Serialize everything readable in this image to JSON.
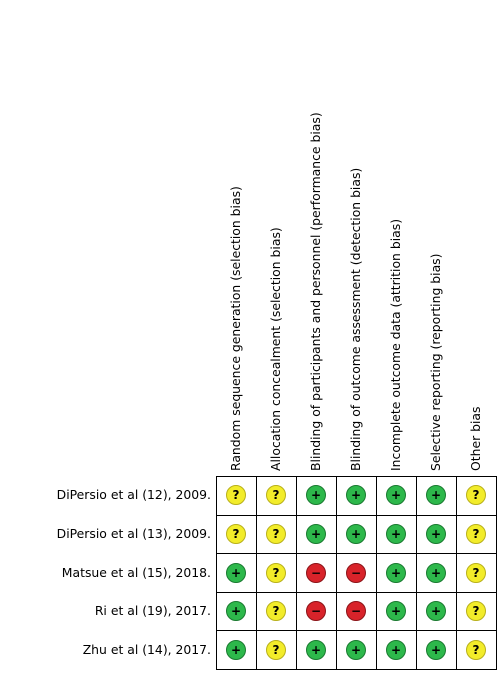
{
  "domains": [
    "Random sequence generation (selection bias)",
    "Allocation concealment (selection bias)",
    "Blinding of participants and personnel (performance bias)",
    "Blinding of outcome assessment (detection bias)",
    "Incomplete outcome data (attrition bias)",
    "Selective reporting (reporting bias)",
    "Other bias"
  ],
  "studies": [
    {
      "name": "DiPersio et al (12), 2009.",
      "judgements": [
        "unclear",
        "unclear",
        "low",
        "low",
        "low",
        "low",
        "unclear"
      ]
    },
    {
      "name": "DiPersio et al (13), 2009.",
      "judgements": [
        "unclear",
        "unclear",
        "low",
        "low",
        "low",
        "low",
        "unclear"
      ]
    },
    {
      "name": "Matsue et al (15), 2018.",
      "judgements": [
        "low",
        "unclear",
        "high",
        "high",
        "low",
        "low",
        "unclear"
      ]
    },
    {
      "name": "Ri et al (19), 2017.",
      "judgements": [
        "low",
        "unclear",
        "high",
        "high",
        "low",
        "low",
        "unclear"
      ]
    },
    {
      "name": "Zhu et al (14), 2017.",
      "judgements": [
        "low",
        "unclear",
        "low",
        "low",
        "low",
        "low",
        "unclear"
      ]
    }
  ],
  "symbols": {
    "low": "+",
    "unclear": "?",
    "high": "−"
  },
  "colors": {
    "low": "#2db84b",
    "unclear": "#f2ec2a",
    "high": "#d8232a"
  }
}
